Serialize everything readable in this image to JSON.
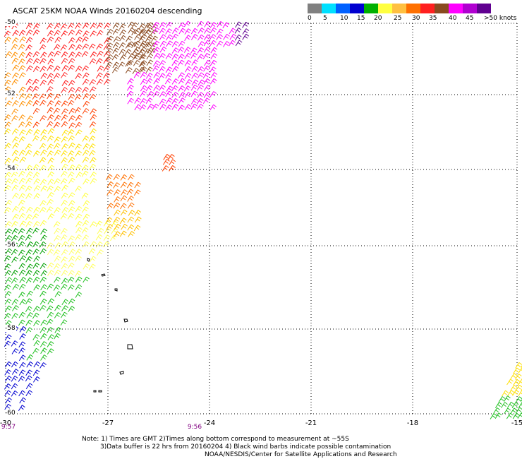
{
  "title": "ASCAT 25KM NOAA Winds 20160204 descending",
  "legend": {
    "labels": [
      "0",
      "5",
      "10",
      "15",
      "20",
      "25",
      "30",
      "35",
      "40",
      "45",
      ">50 knots"
    ],
    "colors": [
      "#606060",
      "#00d8ff",
      "#0090ff",
      "#0000ff",
      "#00b000",
      "#ffff00",
      "#ffc000",
      "#ff6000",
      "#ff0000",
      "#ff00ff",
      "#a000c0"
    ],
    "bar_colors": [
      "#808080",
      "#00e0ff",
      "#0060ff",
      "#0000d0",
      "#00b000",
      "#ffff40",
      "#ffc040",
      "#ff7000",
      "#ff2020",
      "#8a4a20",
      "#ff00ff",
      "#b000d0",
      "#600090"
    ]
  },
  "axes": {
    "lon_labels": [
      "-30",
      "-27",
      "-24",
      "-21",
      "-18",
      "-15"
    ],
    "lat_labels": [
      "-50",
      "-52",
      "-54",
      "-56",
      "-58",
      "-60"
    ]
  },
  "times": [
    "9:57",
    "9:56"
  ],
  "notes": [
    "Note: 1) Times are GMT 2)Times along bottom correspond to measurement at ~55S",
    "3)Data buffer is 22 hrs from 20160204 4) Black wind barbs indicate possible contamination",
    "NOAA/NESDIS/Center for Satellite Applications and Research"
  ]
}
